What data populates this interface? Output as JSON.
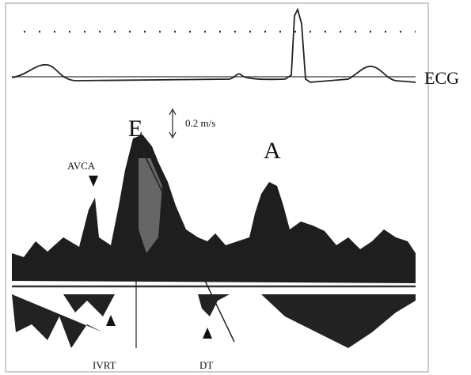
{
  "labels": {
    "ecg": "ECG",
    "e_wave": "E",
    "scale": "0.2 m/s",
    "a_wave": "A",
    "avca": "AVCA",
    "ivrt": "IVRT",
    "dt": "DT"
  }
}
